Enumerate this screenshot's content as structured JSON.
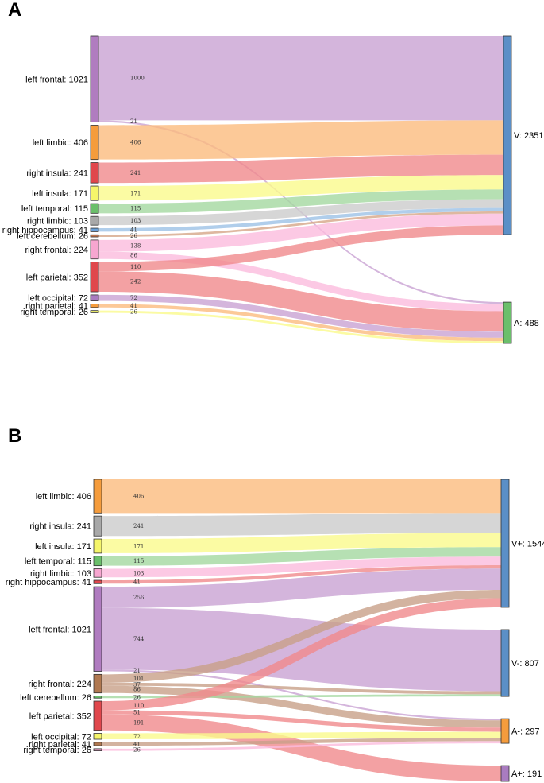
{
  "panels": [
    {
      "letter": "A",
      "sources": [
        {
          "name": "left frontal",
          "value": 1021,
          "label": "left frontal: 1021",
          "color": "#b07cc0"
        },
        {
          "name": "left limbic",
          "value": 406,
          "label": "left limbic: 406",
          "color": "#f59c3c"
        },
        {
          "name": "right insula",
          "value": 241,
          "label": "right insula: 241",
          "color": "#e0474c"
        },
        {
          "name": "left insula",
          "value": 171,
          "label": "left insula: 171",
          "color": "#f5f56a"
        },
        {
          "name": "left temporal",
          "value": 115,
          "label": "left temporal: 115",
          "color": "#6bbf6b"
        },
        {
          "name": "right limbic",
          "value": 103,
          "label": "right limbic: 103",
          "color": "#a8a8a8"
        },
        {
          "name": "right hippocampus",
          "value": 41,
          "label": "right hippocampus: 41",
          "color": "#6aa0d8"
        },
        {
          "name": "left cerebellum",
          "value": 26,
          "label": "left cerebellum: 26",
          "color": "#c07850"
        },
        {
          "name": "right frontal",
          "value": 224,
          "label": "right frontal: 224",
          "color": "#f7a6d0"
        },
        {
          "name": "left parietal",
          "value": 352,
          "label": "left parietal: 352",
          "color": "#e0474c"
        },
        {
          "name": "left occipital",
          "value": 72,
          "label": "left occipital: 72",
          "color": "#a97cc0"
        },
        {
          "name": "right parietal",
          "value": 41,
          "label": "right parietal: 41",
          "color": "#f59c3c"
        },
        {
          "name": "right temporal",
          "value": 26,
          "label": "right temporal: 26",
          "color": "#f5f56a"
        }
      ],
      "targets": [
        {
          "name": "V",
          "value": 2351,
          "label": "V: 2351",
          "color": "#5b8fc7"
        },
        {
          "name": "A",
          "value": 488,
          "label": "A: 488",
          "color": "#6bbf6b"
        }
      ],
      "links": [
        {
          "source": 0,
          "target": 0,
          "value": 1000,
          "label": "1000",
          "color": "#c9a3d3"
        },
        {
          "source": 0,
          "target": 1,
          "value": 21,
          "label": "21",
          "color": "#c9a3d3"
        },
        {
          "source": 1,
          "target": 0,
          "value": 406,
          "label": "406",
          "color": "#fbbc7e"
        },
        {
          "source": 2,
          "target": 0,
          "value": 241,
          "label": "241",
          "color": "#f08a8c"
        },
        {
          "source": 3,
          "target": 0,
          "value": 171,
          "label": "171",
          "color": "#fafa8c"
        },
        {
          "source": 4,
          "target": 0,
          "value": 115,
          "label": "115",
          "color": "#a4d8a0"
        },
        {
          "source": 5,
          "target": 0,
          "value": 103,
          "label": "103",
          "color": "#cccccc"
        },
        {
          "source": 6,
          "target": 0,
          "value": 41,
          "label": "41",
          "color": "#9cc2e6"
        },
        {
          "source": 7,
          "target": 0,
          "value": 26,
          "label": "26",
          "color": "#d6a688"
        },
        {
          "source": 8,
          "target": 0,
          "value": 138,
          "label": "138",
          "color": "#fbbcdd"
        },
        {
          "source": 8,
          "target": 1,
          "value": 86,
          "label": "86",
          "color": "#fbbcdd"
        },
        {
          "source": 9,
          "target": 0,
          "value": 110,
          "label": "110",
          "color": "#f08a8c"
        },
        {
          "source": 9,
          "target": 1,
          "value": 242,
          "label": "242",
          "color": "#f08a8c"
        },
        {
          "source": 10,
          "target": 1,
          "value": 72,
          "label": "72",
          "color": "#c9a3d3"
        },
        {
          "source": 11,
          "target": 1,
          "value": 41,
          "label": "41",
          "color": "#fbbc7e"
        },
        {
          "source": 12,
          "target": 1,
          "value": 26,
          "label": "26",
          "color": "#fafa8c"
        }
      ]
    },
    {
      "letter": "B",
      "sources": [
        {
          "name": "left limbic",
          "value": 406,
          "label": "left limbic: 406",
          "color": "#f59c3c"
        },
        {
          "name": "right insula",
          "value": 241,
          "label": "right insula: 241",
          "color": "#a8a8a8"
        },
        {
          "name": "left insula",
          "value": 171,
          "label": "left insula: 171",
          "color": "#f5f56a"
        },
        {
          "name": "left temporal",
          "value": 115,
          "label": "left temporal: 115",
          "color": "#6bbf6b"
        },
        {
          "name": "right limbic",
          "value": 103,
          "label": "right limbic: 103",
          "color": "#f7a6d0"
        },
        {
          "name": "right hippocampus",
          "value": 41,
          "label": "right hippocampus: 41",
          "color": "#e0474c"
        },
        {
          "name": "left frontal",
          "value": 1021,
          "label": "left frontal: 1021",
          "color": "#b07cc0"
        },
        {
          "name": "right frontal",
          "value": 224,
          "label": "right frontal: 224",
          "color": "#b07850"
        },
        {
          "name": "left cerebellum",
          "value": 26,
          "label": "left cerebellum: 26",
          "color": "#6bbf6b"
        },
        {
          "name": "left parietal",
          "value": 352,
          "label": "left parietal: 352",
          "color": "#e0474c"
        },
        {
          "name": "left occipital",
          "value": 72,
          "label": "left occipital: 72",
          "color": "#f5f56a"
        },
        {
          "name": "right parietal",
          "value": 41,
          "label": "right parietal: 41",
          "color": "#b07850"
        },
        {
          "name": "right temporal",
          "value": 26,
          "label": "right temporal: 26",
          "color": "#f7a6d0"
        }
      ],
      "targets": [
        {
          "name": "V+",
          "value": 1544,
          "label": "V+: 1544",
          "color": "#5b8fc7"
        },
        {
          "name": "V-",
          "value": 807,
          "label": "V-: 807",
          "color": "#5b8fc7"
        },
        {
          "name": "A-",
          "value": 297,
          "label": "A-: 297",
          "color": "#f59c3c"
        },
        {
          "name": "A+",
          "value": 191,
          "label": "A+: 191",
          "color": "#a97cc0"
        }
      ],
      "links": [
        {
          "source": 0,
          "target": 0,
          "value": 406,
          "label": "406",
          "color": "#fbbc7e"
        },
        {
          "source": 1,
          "target": 0,
          "value": 241,
          "label": "241",
          "color": "#cccccc"
        },
        {
          "source": 2,
          "target": 0,
          "value": 171,
          "label": "171",
          "color": "#fafa8c"
        },
        {
          "source": 3,
          "target": 0,
          "value": 115,
          "label": "115",
          "color": "#a4d8a0"
        },
        {
          "source": 4,
          "target": 0,
          "value": 103,
          "label": "103",
          "color": "#fbbcdd"
        },
        {
          "source": 5,
          "target": 0,
          "value": 41,
          "label": "41",
          "color": "#f08a8c"
        },
        {
          "source": 6,
          "target": 0,
          "value": 256,
          "label": "256",
          "color": "#c9a3d3"
        },
        {
          "source": 6,
          "target": 1,
          "value": 744,
          "label": "744",
          "color": "#c9a3d3"
        },
        {
          "source": 6,
          "target": 2,
          "value": 21,
          "label": "21",
          "color": "#c9a3d3"
        },
        {
          "source": 7,
          "target": 0,
          "value": 101,
          "label": "101",
          "color": "#c8a088"
        },
        {
          "source": 7,
          "target": 1,
          "value": 37,
          "label": "37",
          "color": "#c8a088"
        },
        {
          "source": 7,
          "target": 2,
          "value": 86,
          "label": "86",
          "color": "#c8a088"
        },
        {
          "source": 8,
          "target": 1,
          "value": 26,
          "label": "26",
          "color": "#a4d8a0"
        },
        {
          "source": 9,
          "target": 0,
          "value": 110,
          "label": "110",
          "color": "#f08a8c"
        },
        {
          "source": 9,
          "target": 2,
          "value": 51,
          "label": "51",
          "color": "#f08a8c"
        },
        {
          "source": 9,
          "target": 3,
          "value": 191,
          "label": "191",
          "color": "#f08a8c"
        },
        {
          "source": 10,
          "target": 2,
          "value": 72,
          "label": "72",
          "color": "#fafa8c"
        },
        {
          "source": 11,
          "target": 2,
          "value": 41,
          "label": "41",
          "color": "#c8a088"
        },
        {
          "source": 12,
          "target": 2,
          "value": 26,
          "label": "26",
          "color": "#fbbcdd"
        }
      ]
    }
  ]
}
